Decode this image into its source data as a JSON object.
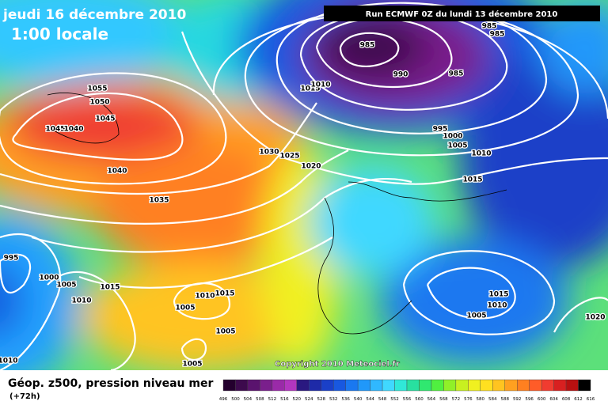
{
  "header": {
    "date": "jeudi 16 décembre 2010",
    "time": "1:00 locale",
    "run": "Run ECMWF 0Z du lundi 13 décembre 2010"
  },
  "copyright": "Copyright 2010 Meteociel.fr",
  "footer": {
    "title": "Géop. z500, pression niveau mer",
    "lead": "(+72h)"
  },
  "isobar_labels": [
    1055,
    1050,
    1045,
    1040,
    1045,
    1040,
    1035,
    1030,
    1025,
    1020,
    1015,
    1010,
    985,
    990,
    985,
    985,
    985,
    995,
    1000,
    1005,
    1010,
    1015,
    995,
    1000,
    1005,
    1015,
    1010,
    1005,
    1010,
    1015,
    1005,
    1005,
    1010,
    1015,
    1010,
    1005,
    1020
  ],
  "scale": {
    "labels": [
      496,
      500,
      504,
      508,
      512,
      516,
      520,
      524,
      528,
      532,
      536,
      540,
      544,
      548,
      552,
      556,
      560,
      564,
      568,
      572,
      576,
      580,
      584,
      588,
      592,
      596,
      600,
      604,
      608,
      612,
      616
    ],
    "colors": [
      "#24002e",
      "#3d0a4d",
      "#5a136e",
      "#7a1f8c",
      "#9a2aa8",
      "#b236bf",
      "#2a1880",
      "#1e2aa8",
      "#1a40c8",
      "#1858e0",
      "#1a78f0",
      "#2098fa",
      "#30b8ff",
      "#40d8ff",
      "#30e8d8",
      "#28e0a0",
      "#30e870",
      "#50f040",
      "#90f028",
      "#c8f020",
      "#f0f020",
      "#ffe020",
      "#ffc420",
      "#ffa020",
      "#ff8020",
      "#ff5c28",
      "#f03c30",
      "#d82020",
      "#b81010",
      "#000000"
    ]
  }
}
